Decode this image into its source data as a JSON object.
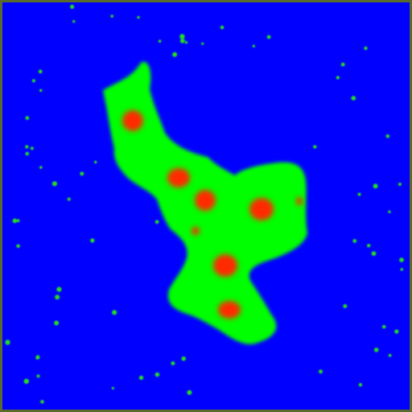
{
  "colors": {
    "background": "#0000ff",
    "border": "#5a6a2a",
    "cluster": "#00ff00",
    "dot": "#22dd22",
    "nucleus": "#ff2a00"
  },
  "nuclei_count": 8,
  "background_dot_count": 70
}
